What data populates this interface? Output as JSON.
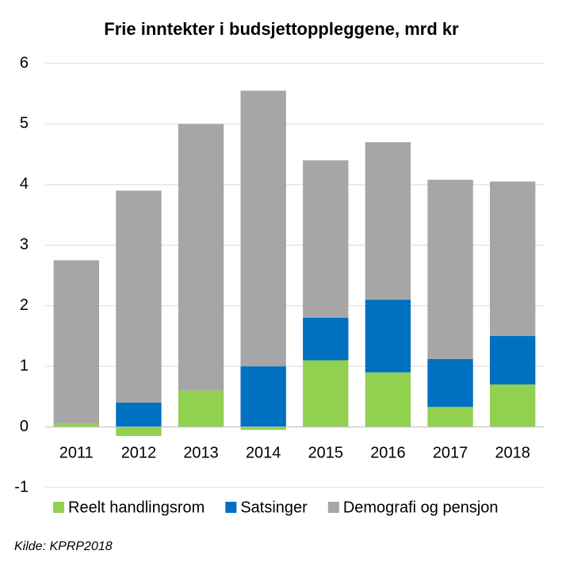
{
  "chart_data": {
    "type": "stacked_bar",
    "title": "Frie inntekter i budsjettoppleggene, mrd kr",
    "categories": [
      "2011",
      "2012",
      "2013",
      "2014",
      "2015",
      "2016",
      "2017",
      "2018"
    ],
    "series": [
      {
        "name": "Reelt handlingsrom",
        "color": "#92d050",
        "values": [
          0.05,
          -0.15,
          0.6,
          -0.05,
          1.1,
          0.9,
          0.33,
          0.7
        ]
      },
      {
        "name": "Satsinger",
        "color": "#0070c0",
        "values": [
          0,
          0.4,
          0,
          1.0,
          0.7,
          1.2,
          0.79,
          0.8
        ]
      },
      {
        "name": "Demografi og pensjon",
        "color": "#a6a6a6",
        "values": [
          2.7,
          3.5,
          4.4,
          4.55,
          2.6,
          2.6,
          2.96,
          2.55
        ]
      }
    ],
    "ylim": [
      -1,
      6
    ],
    "yticks": [
      -1,
      0,
      1,
      2,
      3,
      4,
      5,
      6
    ],
    "grid": true,
    "legend": "bottom",
    "source": "Kilde: KPRP2018"
  }
}
